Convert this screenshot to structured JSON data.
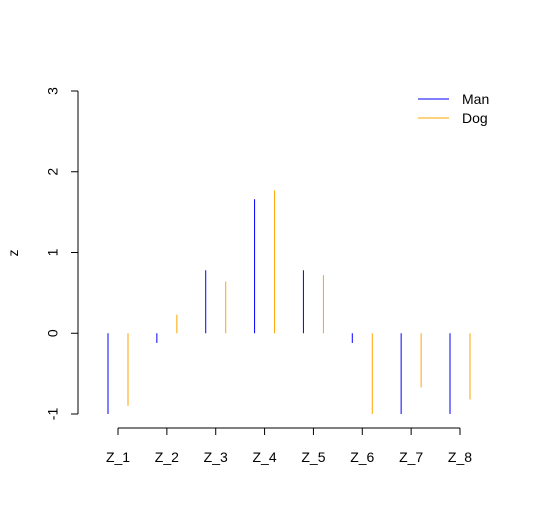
{
  "chart_data": {
    "type": "bar",
    "title": "",
    "xlabel": "",
    "ylabel": "z",
    "ylim": [
      -1,
      3
    ],
    "yticks": [
      "-1",
      "0",
      "1",
      "2",
      "3"
    ],
    "categories": [
      "Z_1",
      "Z_2",
      "Z_3",
      "Z_4",
      "Z_5",
      "Z_6",
      "Z_7",
      "Z_8"
    ],
    "series": [
      {
        "name": "Man",
        "color": "#0000FF",
        "values": [
          -1.0,
          -0.12,
          0.78,
          1.66,
          0.78,
          -0.12,
          -1.0,
          -1.0
        ]
      },
      {
        "name": "Dog",
        "color": "#FFA500",
        "values": [
          -0.9,
          0.23,
          0.64,
          1.77,
          0.72,
          -1.0,
          -0.67,
          -0.82
        ]
      }
    ],
    "legend": {
      "position": "top-right"
    },
    "grid": false
  }
}
